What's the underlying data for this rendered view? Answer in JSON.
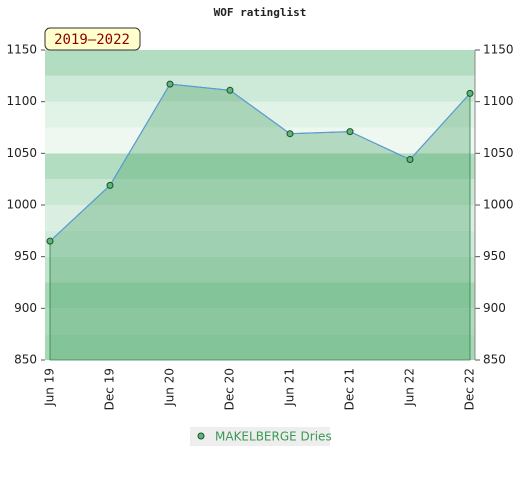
{
  "chart_data": {
    "type": "area",
    "title": "WOF ratinglist",
    "annotation": "2019–2022",
    "categories": [
      "Jun 19",
      "Dec 19",
      "Jun 20",
      "Dec 20",
      "Jun 21",
      "Dec 21",
      "Jun 22",
      "Dec 22"
    ],
    "series": [
      {
        "name": "MAKELBERGE Dries",
        "color": "#5b9bd5",
        "values": [
          965,
          1019,
          1117,
          1111,
          1069,
          1071,
          1044,
          1108
        ]
      }
    ],
    "ylim": [
      850,
      1150
    ],
    "yticks": [
      850,
      900,
      950,
      1000,
      1050,
      1100,
      1150
    ],
    "y2lim": [
      850,
      1150
    ],
    "y2ticks": [
      850,
      900,
      950,
      1000,
      1050,
      1100,
      1150
    ]
  }
}
